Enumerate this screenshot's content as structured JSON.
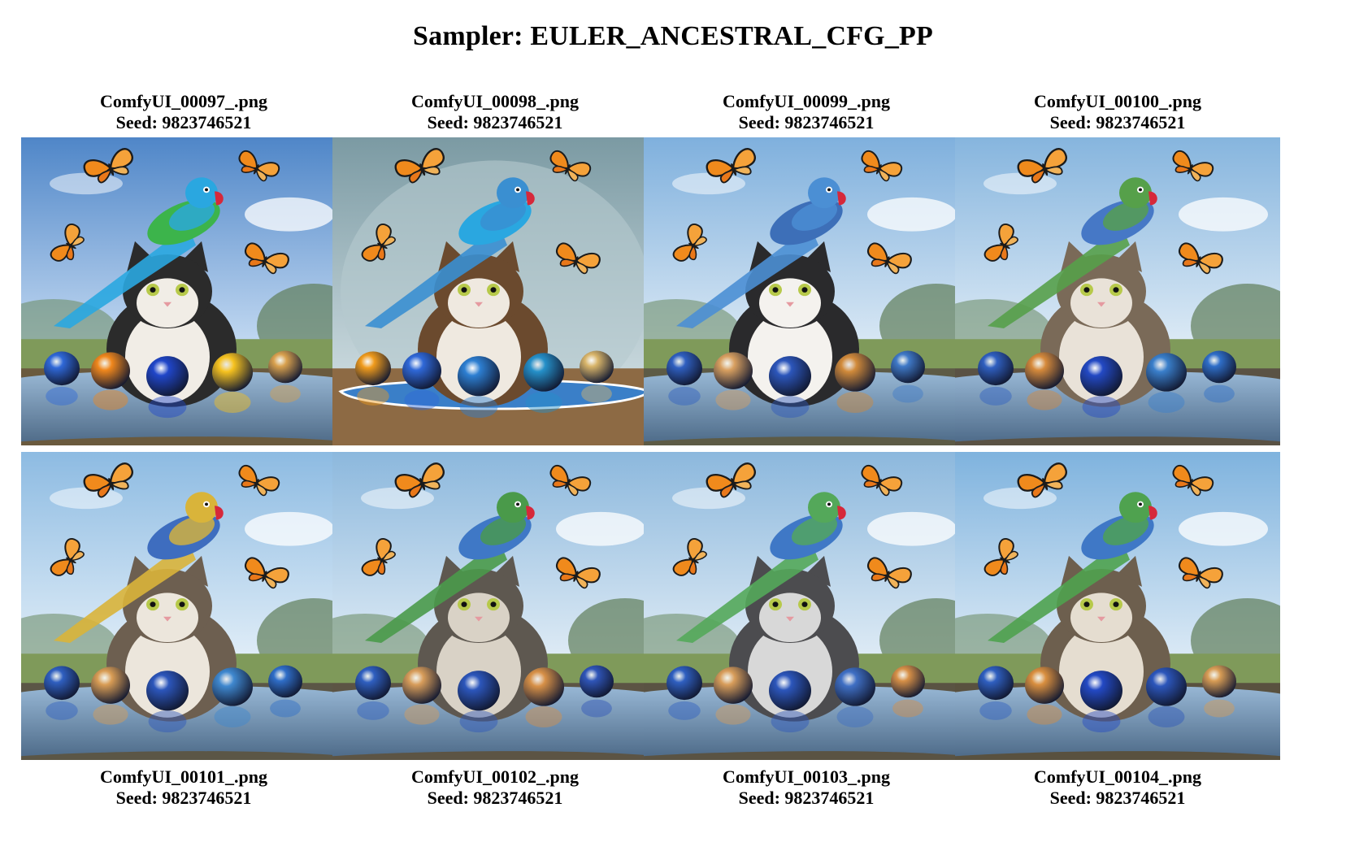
{
  "title": "Sampler: EULER_ANCESTRAL_CFG_PP",
  "images": [
    {
      "filename": "ComfyUI_00097_.png",
      "seed": "Seed: 9823746521",
      "style": "vivid",
      "sky": "#4f86c8",
      "sky2": "#cfe2f6",
      "ground": "#6a5a3e",
      "cat": "#f1ede6",
      "catdark": "#2b2b2b",
      "bird": "#3cb44b",
      "bird2": "#2aa7e0",
      "balls": [
        "#2f68d8",
        "#f0871c",
        "#2046c9",
        "#f6c21f",
        "#d9a14e"
      ]
    },
    {
      "filename": "ComfyUI_00098_.png",
      "seed": "Seed: 9823746521",
      "style": "studio",
      "sky": "#7b9aa3",
      "sky2": "#c6d6db",
      "ground": "#8d6a44",
      "cat": "#efe9e0",
      "catdark": "#6b4a2e",
      "bird": "#2aa7e0",
      "bird2": "#3a8fd1",
      "balls": [
        "#f09b1c",
        "#2f68d8",
        "#2d7fd2",
        "#2590c9",
        "#d9b56a"
      ]
    },
    {
      "filename": "ComfyUI_00099_.png",
      "seed": "Seed: 9823746521",
      "style": "meadow",
      "sky": "#7fb0dd",
      "sky2": "#e3eef7",
      "ground": "#5d5b46",
      "cat": "#f4f2ee",
      "catdark": "#2a2a2c",
      "bird": "#3d6fb8",
      "bird2": "#4b8fd4",
      "balls": [
        "#2f5fc0",
        "#d9a060",
        "#2c56bb",
        "#d18a3a",
        "#3f79c7"
      ]
    },
    {
      "filename": "ComfyUI_00100_.png",
      "seed": "Seed: 9823746521",
      "style": "meadow",
      "sky": "#86b5de",
      "sky2": "#e6f0f8",
      "ground": "#5a5244",
      "cat": "#e9e2d8",
      "catdark": "#7a6a58",
      "bird": "#4678c6",
      "bird2": "#56a04a",
      "balls": [
        "#2f5fc0",
        "#d68a3b",
        "#2349c4",
        "#3a7fcb",
        "#2f6ec8"
      ]
    },
    {
      "filename": "ComfyUI_00101_.png",
      "seed": "Seed: 9823746521",
      "style": "meadow",
      "sky": "#8dbbe2",
      "sky2": "#eaf3fa",
      "ground": "#5b5646",
      "cat": "#ece6dc",
      "catdark": "#6d5f50",
      "bird": "#3e6dbf",
      "bird2": "#d9b43a",
      "balls": [
        "#2f5fc0",
        "#d99d55",
        "#2c56bb",
        "#3f88cf",
        "#2f6ec8"
      ]
    },
    {
      "filename": "ComfyUI_00102_.png",
      "seed": "Seed: 9823746521",
      "style": "meadow",
      "sky": "#8cb8dd",
      "sky2": "#e8f1f8",
      "ground": "#5c5444",
      "cat": "#d9d2c6",
      "catdark": "#5e5850",
      "bird": "#3f78c6",
      "bird2": "#4a9a4a",
      "balls": [
        "#2f5fc0",
        "#d89d5a",
        "#2c56bb",
        "#d79047",
        "#2f55b8"
      ]
    },
    {
      "filename": "ComfyUI_00103_.png",
      "seed": "Seed: 9823746521",
      "style": "meadow",
      "sky": "#8cb8dd",
      "sky2": "#e8f1f8",
      "ground": "#5a5343",
      "cat": "#d8d8d8",
      "catdark": "#4c4c4f",
      "bird": "#3f78c6",
      "bird2": "#54a85a",
      "balls": [
        "#2f5fc0",
        "#d89d5a",
        "#2c56bb",
        "#3f6fc4",
        "#d79047"
      ]
    },
    {
      "filename": "ComfyUI_00104_.png",
      "seed": "Seed: 9823746521",
      "style": "meadow",
      "sky": "#7fb3de",
      "sky2": "#e6f0f8",
      "ground": "#59513f",
      "cat": "#e5ddd0",
      "catdark": "#6d5f4e",
      "bird": "#3f78c6",
      "bird2": "#4fa24f",
      "balls": [
        "#2f5fc0",
        "#d98f3f",
        "#2349c4",
        "#2c56bb",
        "#d99d55"
      ]
    }
  ]
}
